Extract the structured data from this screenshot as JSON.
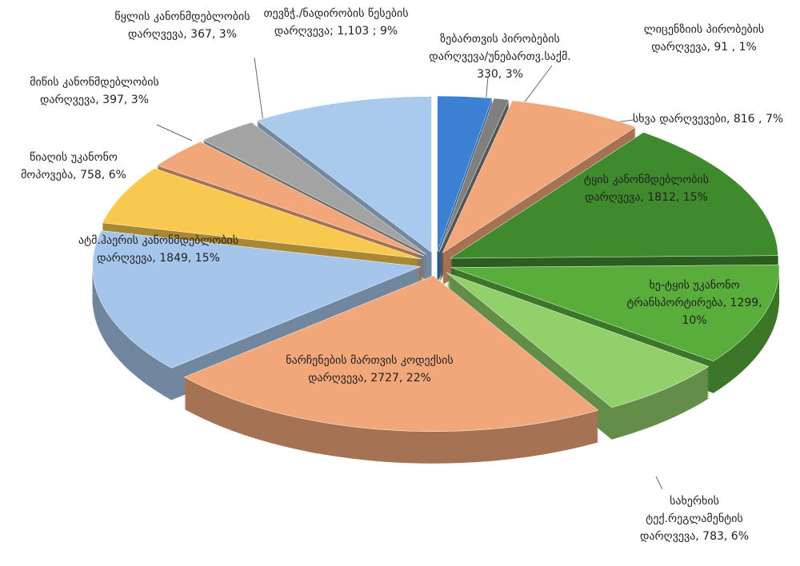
{
  "chart_data": {
    "type": "pie3d",
    "categories": [
      "ზებართვის პირობების დარღვევა/უნებართვ.საქმ. 330, 3%",
      "ლიცენზიის პირობების დარღვევა, 91 , 1%",
      "სხვა დარღვევები, 816 , 7%",
      "ტყის კანონმდებლობის დარღვევა, 1812, 15%",
      "ხე-ტყის უკანონო ტრანსპორტირება, 1299, 10%",
      "სახერხის ტექ.რეგლამენტის დარღვევა, 783, 6%",
      "ნარჩენების მართვის კოდექსის დარღვევა, 2727, 22%",
      "ატმ.ჰაერის კანონმდებლობის დარღვევა, 1849, 15%",
      "წიაღის უკანონო მოპოვება, 758, 6%",
      "მიწის კანონმდებლობის დარღვევა, 397, 3%",
      "წყლის კანონმდებლობის დარღვევა, 367, 3%",
      "თევზჭ./ნადირობის წესების დარღვევა; 1,103 ; 9%"
    ],
    "values": [
      330,
      91,
      816,
      1812,
      1299,
      783,
      2727,
      1849,
      758,
      397,
      367,
      1103
    ],
    "colors": [
      "#3b80d2",
      "#7f7f7f",
      "#f2a77a",
      "#3f8a2d",
      "#58ad3b",
      "#92d06c",
      "#f2a77a",
      "#a6c5ea",
      "#f9c84e",
      "#f2a77a",
      "#a3a3a3",
      "#a9c9ed"
    ]
  }
}
